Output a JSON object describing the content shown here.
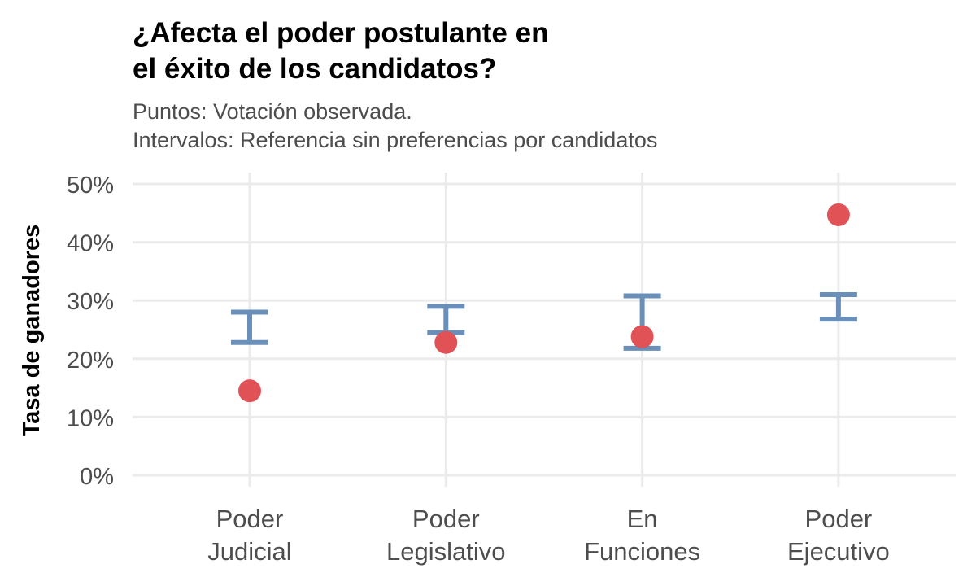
{
  "chart_data": {
    "type": "scatter",
    "title_lines": [
      "¿Afecta el poder postulante en",
      "el éxito de los candidatos?"
    ],
    "subtitle_lines": [
      "Puntos: Votación observada.",
      "Intervalos: Referencia sin preferencias por candidatos"
    ],
    "ylabel": "Tasa de ganadores",
    "xlabel": "",
    "ylim": [
      0,
      50
    ],
    "yticks": [
      0,
      10,
      20,
      30,
      40,
      50
    ],
    "ytick_labels": [
      "0%",
      "10%",
      "20%",
      "30%",
      "40%",
      "50%"
    ],
    "grid": true,
    "categories": [
      {
        "lines": [
          "Poder",
          "Judicial"
        ]
      },
      {
        "lines": [
          "Poder",
          "Legislativo"
        ]
      },
      {
        "lines": [
          "En",
          "Funciones"
        ]
      },
      {
        "lines": [
          "Poder",
          "Ejecutivo"
        ]
      }
    ],
    "series": [
      {
        "name": "Votación observada",
        "kind": "points",
        "values": [
          14.5,
          22.8,
          23.8,
          44.7
        ]
      },
      {
        "name": "Referencia sin preferencias por candidatos",
        "kind": "intervals",
        "lower": [
          22.8,
          24.5,
          21.8,
          26.8
        ],
        "upper": [
          28.0,
          29.0,
          30.8,
          31.0
        ]
      }
    ],
    "colors": {
      "points": "#e05256",
      "intervals": "#6a8fb8",
      "grid": "#ebebeb",
      "axis_text": "#4d4d4d",
      "title": "#000000",
      "subtitle": "#4d4d4d"
    }
  }
}
